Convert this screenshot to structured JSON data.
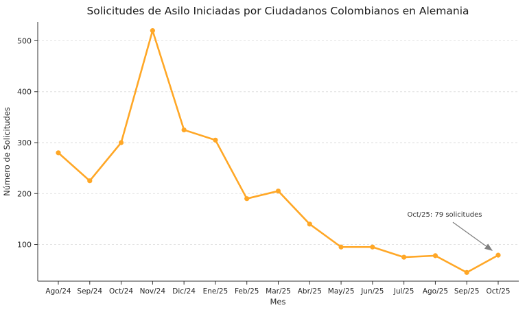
{
  "chart_data": {
    "type": "line",
    "title": "Solicitudes de Asilo Iniciadas por Ciudadanos Colombianos en Alemania",
    "xlabel": "Mes",
    "ylabel": "Número de Solicitudes",
    "categories": [
      "Ago/24",
      "Sep/24",
      "Oct/24",
      "Nov/24",
      "Dic/24",
      "Ene/25",
      "Feb/25",
      "Mar/25",
      "Abr/25",
      "May/25",
      "Jun/25",
      "Jul/25",
      "Ago/25",
      "Sep/25",
      "Oct/25"
    ],
    "values": [
      280,
      225,
      300,
      520,
      325,
      305,
      190,
      205,
      140,
      95,
      95,
      75,
      78,
      45,
      79
    ],
    "yticks": [
      100,
      200,
      300,
      400,
      500
    ],
    "ylim": [
      28,
      537
    ],
    "line_color": "#FFA726",
    "grid": true,
    "legend_position": "none",
    "annotation": {
      "text": "Oct/25: 79 solicitudes",
      "target_category": "Oct/25",
      "target_value": 79,
      "arrow_color": "#808080"
    }
  }
}
